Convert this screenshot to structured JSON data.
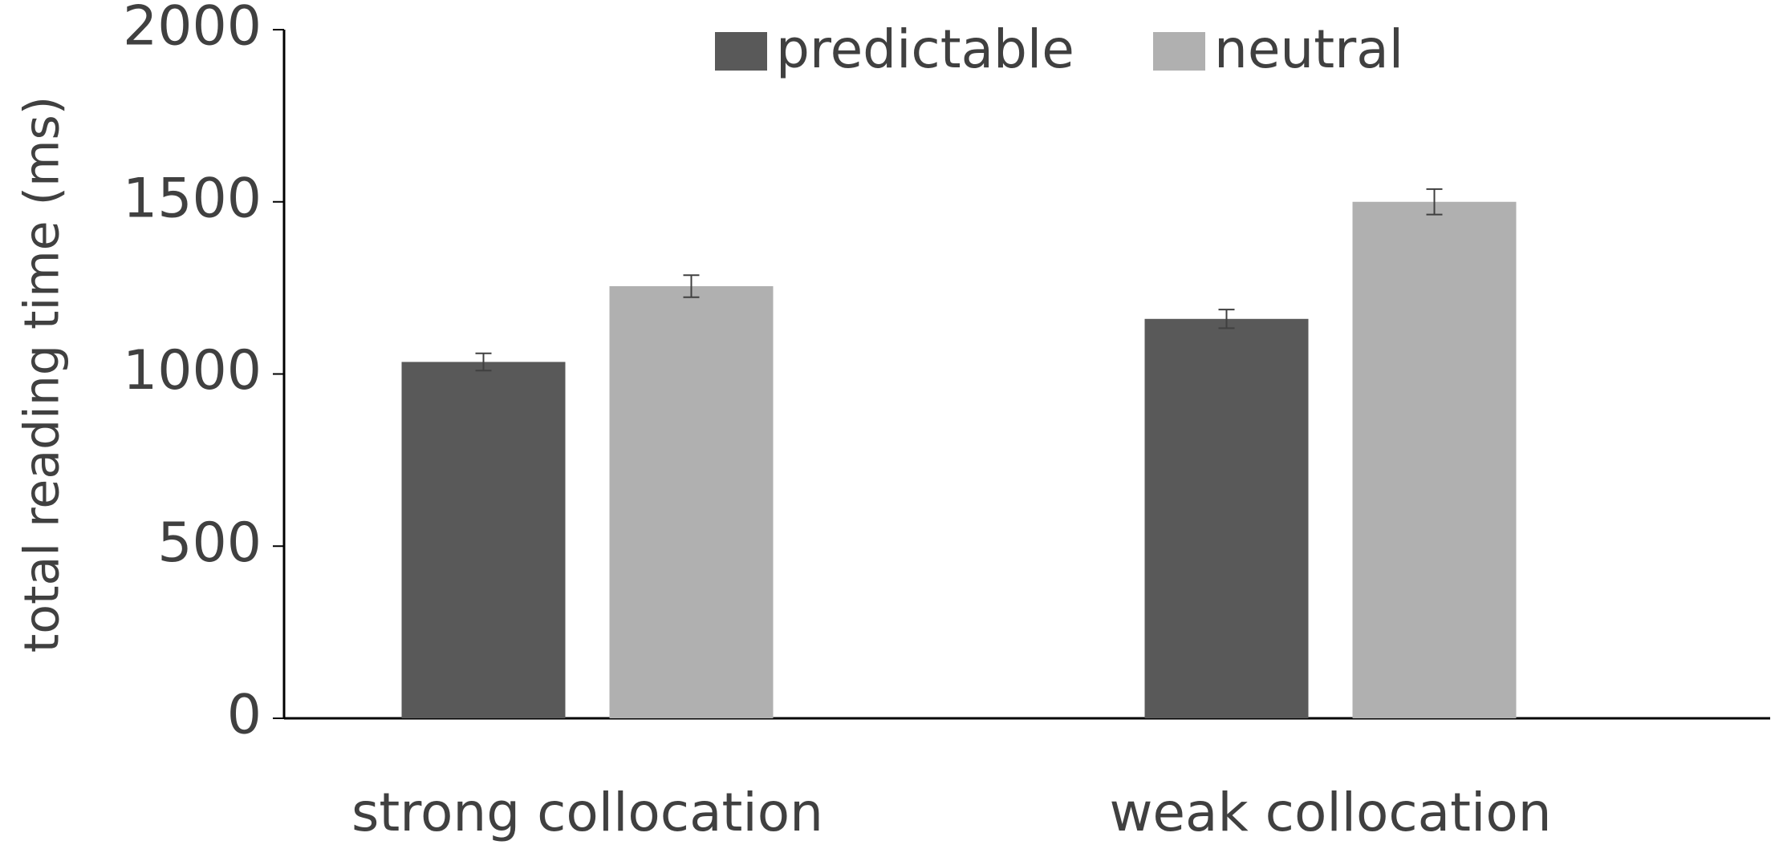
{
  "chart_data": {
    "type": "bar",
    "y_label": "total reading time (ms)",
    "categories": [
      "strong collocation",
      "weak collocation"
    ],
    "series": [
      {
        "name": "predictable",
        "color": "#595959",
        "values": [
          1035,
          1160
        ],
        "errors": [
          25,
          27
        ]
      },
      {
        "name": "neutral",
        "color": "#b0b0b0",
        "values": [
          1255,
          1500
        ],
        "errors": [
          32,
          37
        ]
      }
    ],
    "ylim": [
      0,
      2000
    ],
    "yticks": [
      0,
      500,
      1000,
      1500,
      2000
    ],
    "grid": false,
    "legend": "top"
  }
}
